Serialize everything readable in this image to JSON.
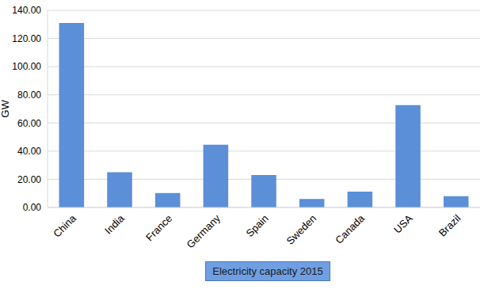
{
  "chart_data": {
    "type": "bar",
    "x_label": "Electricity capacity 2015",
    "y_label": "GW",
    "categories": [
      "China",
      "India",
      "France",
      "Germany",
      "Spain",
      "Sweden",
      "Canada",
      "USA",
      "Brazil"
    ],
    "values": [
      131,
      25,
      10.3,
      44.5,
      23,
      6,
      11.3,
      72.7,
      8
    ],
    "color": "#5b8fd8",
    "ylim": [
      0,
      140
    ],
    "yticks": [
      {
        "value": 0,
        "label": "0.00"
      },
      {
        "value": 20,
        "label": "20.00"
      },
      {
        "value": 40,
        "label": "40.00"
      },
      {
        "value": 60,
        "label": "60.00"
      },
      {
        "value": 80,
        "label": "80.00"
      },
      {
        "value": 100,
        "label": "100.00"
      },
      {
        "value": 120,
        "label": "120.00"
      },
      {
        "value": 140,
        "label": "140.00"
      }
    ],
    "grid": true
  }
}
